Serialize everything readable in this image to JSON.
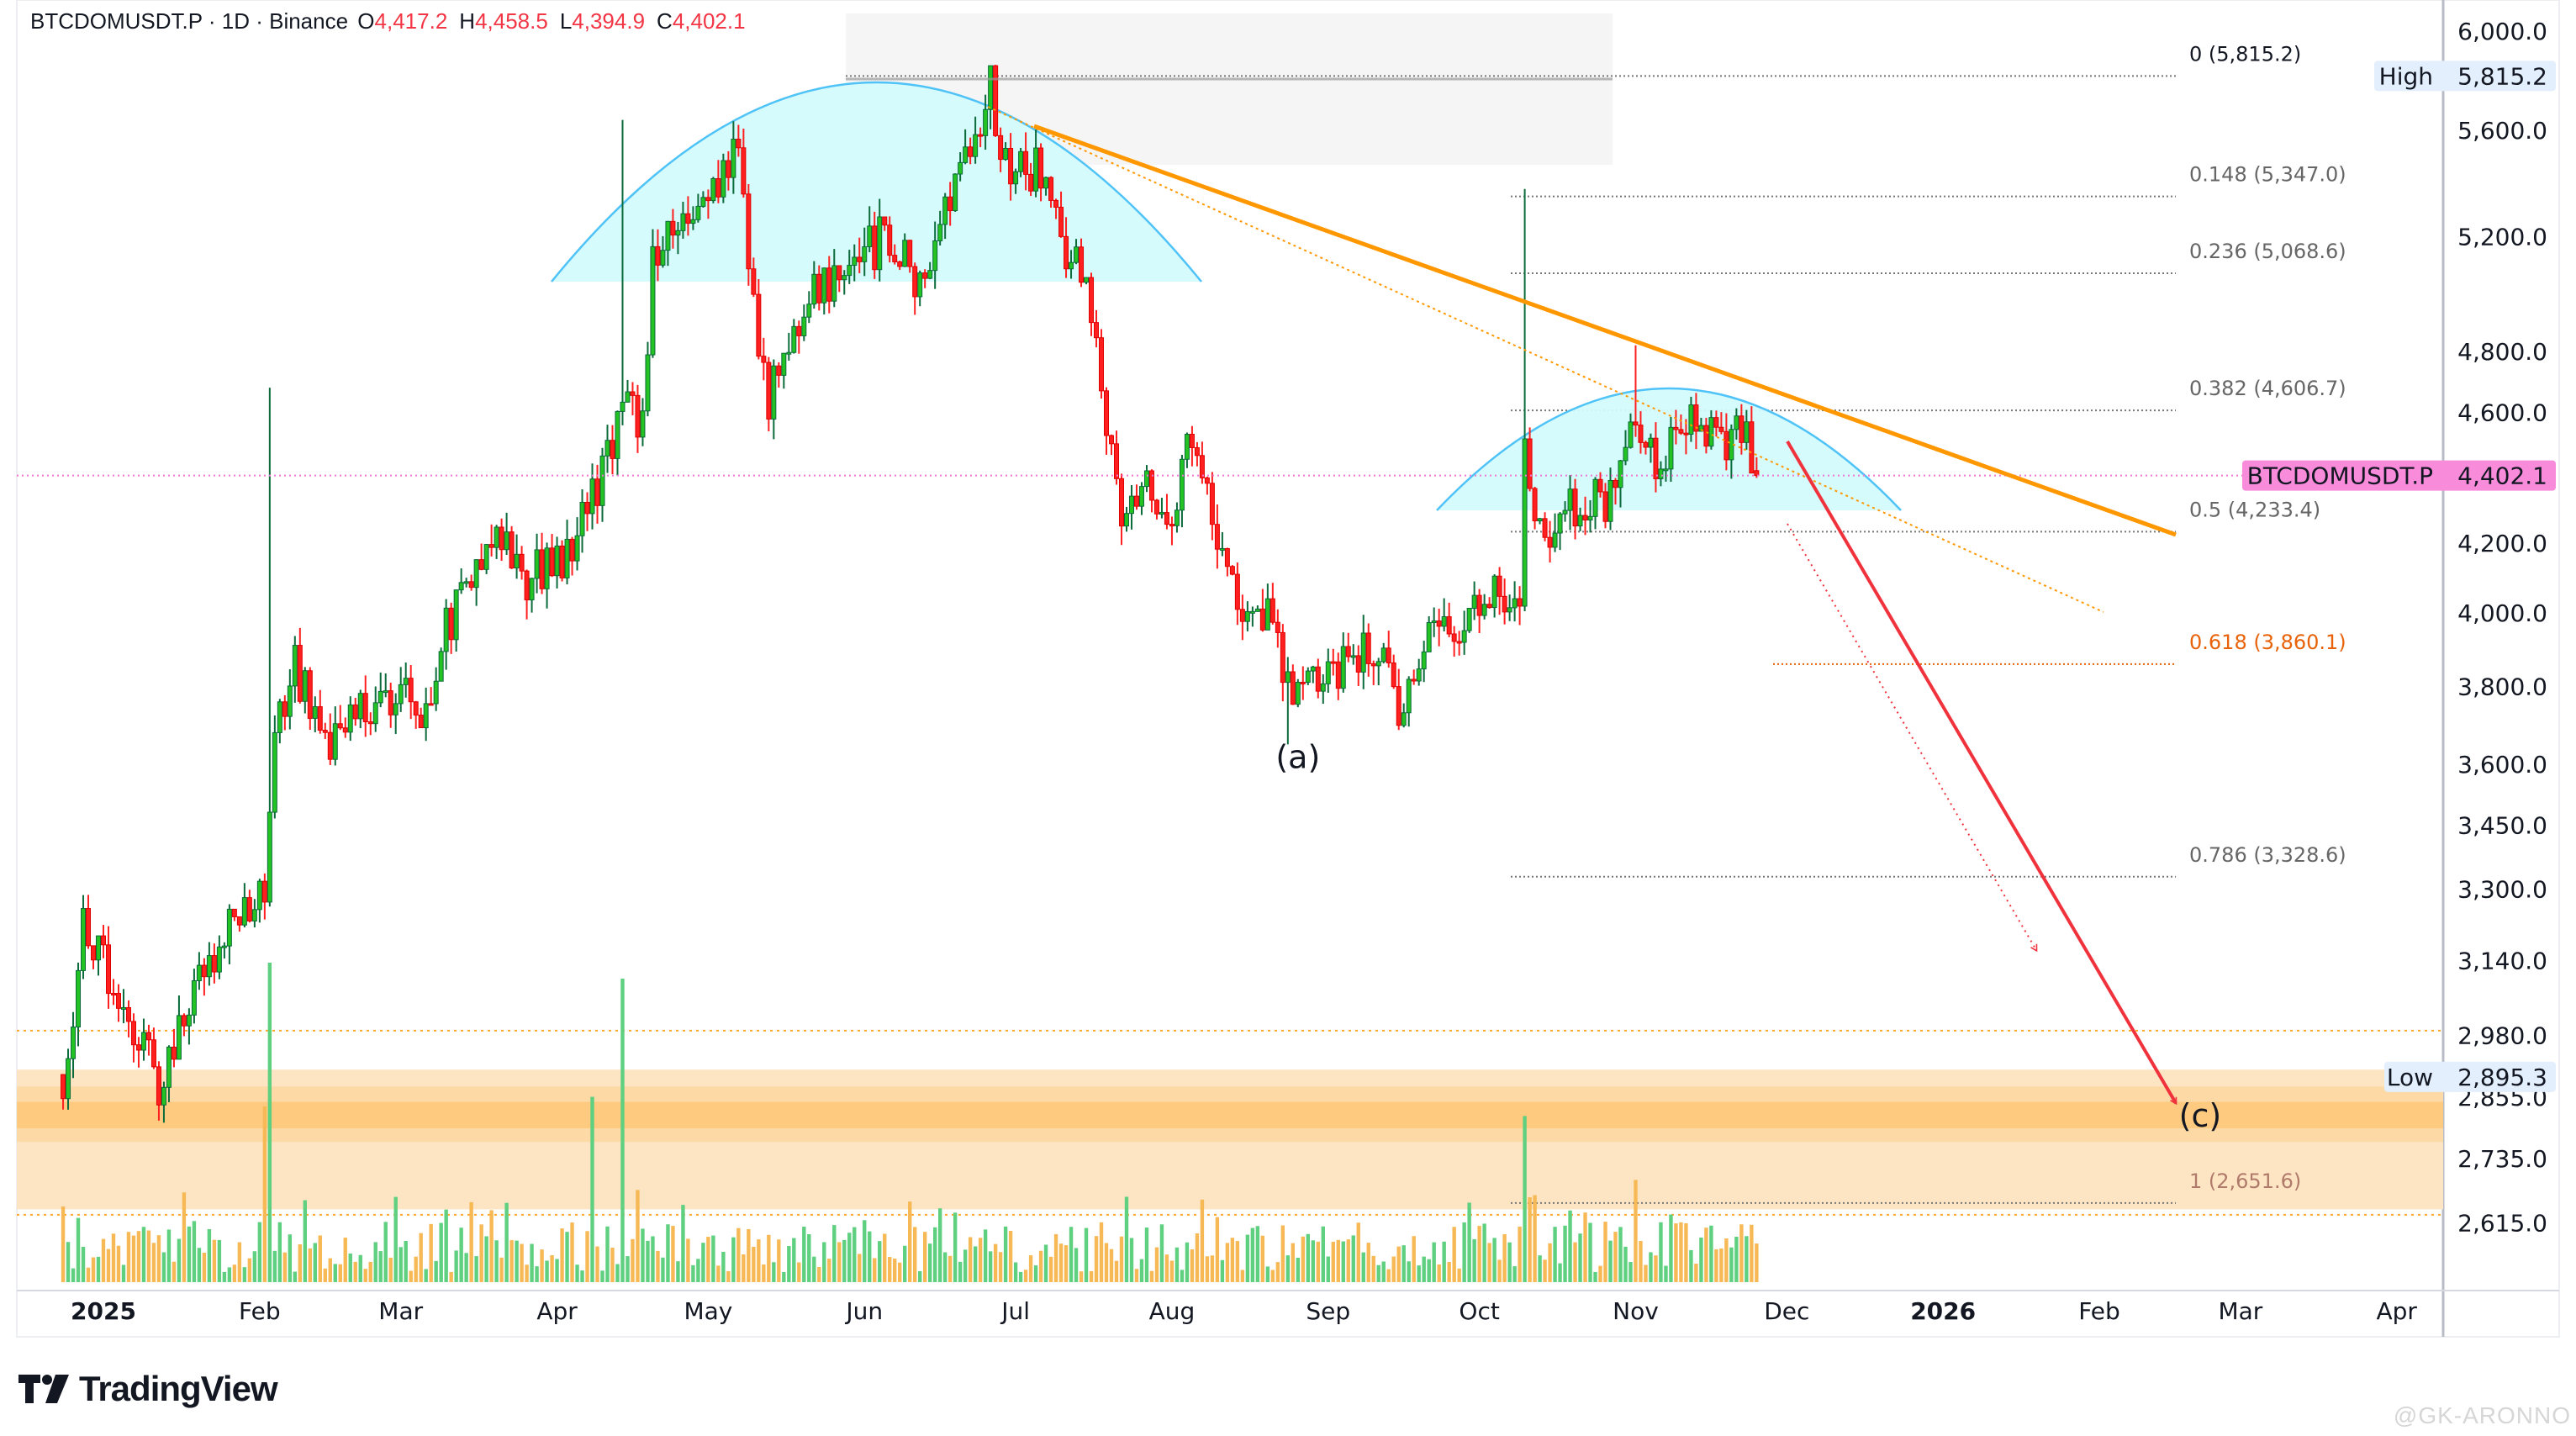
{
  "header": {
    "symbol": "BTCDOMUSDT.P · 1D · Binance",
    "open_label": "O",
    "open": "4,417.2",
    "high_label": "H",
    "high": "4,458.5",
    "low_label": "L",
    "low": "4,394.9",
    "close_label": "C",
    "close": "4,402.1"
  },
  "branding": {
    "logo_text": "TradingView",
    "watermark": "@GK-ARONNO"
  },
  "colors": {
    "up": "#22c322",
    "down": "#ff1f1f",
    "arc": "#4fc3f7",
    "arc_fill": "#d4fbfd",
    "trend": "#ff9800",
    "target": "#f0323c",
    "price_line": "#f078d4",
    "price_badge": "#f98bdb",
    "hl_badge": "#e3effd"
  },
  "chart_data": {
    "type": "candlestick",
    "symbol": "BTCDOMUSDT.P",
    "interval": "1D",
    "y_scale": "log",
    "ylim": [
      2560,
      6080
    ],
    "y_ticks": [
      "6,000.0",
      "5,600.0",
      "5,200.0",
      "4,800.0",
      "4,600.0",
      "4,200.0",
      "4,000.0",
      "3,800.0",
      "3,600.0",
      "3,450.0",
      "3,300.0",
      "3,140.0",
      "2,980.0",
      "2,855.0",
      "2,735.0",
      "2,615.0"
    ],
    "y_tick_values": [
      6000,
      5600,
      5200,
      4800,
      4600,
      4200,
      4000,
      3800,
      3600,
      3450,
      3300,
      3140,
      2980,
      2855,
      2735,
      2615
    ],
    "x_ticks": [
      {
        "label": "2025",
        "date": "2025-01-01",
        "bold": true
      },
      {
        "label": "Feb",
        "date": "2025-02-01"
      },
      {
        "label": "Mar",
        "date": "2025-03-01"
      },
      {
        "label": "Apr",
        "date": "2025-04-01"
      },
      {
        "label": "May",
        "date": "2025-05-01"
      },
      {
        "label": "Jun",
        "date": "2025-06-01"
      },
      {
        "label": "Jul",
        "date": "2025-07-01"
      },
      {
        "label": "Aug",
        "date": "2025-08-01"
      },
      {
        "label": "Sep",
        "date": "2025-09-01"
      },
      {
        "label": "Oct",
        "date": "2025-10-01"
      },
      {
        "label": "Nov",
        "date": "2025-11-01"
      },
      {
        "label": "Dec",
        "date": "2025-12-01"
      },
      {
        "label": "2026",
        "date": "2026-01-01",
        "bold": true
      },
      {
        "label": "Feb",
        "date": "2026-02-01"
      },
      {
        "label": "Mar",
        "date": "2026-03-01"
      },
      {
        "label": "Apr",
        "date": "2026-04-01"
      }
    ],
    "price_path": [
      [
        "2024-12-24",
        2900
      ],
      [
        "2024-12-28",
        3200
      ],
      [
        "2025-01-05",
        3050
      ],
      [
        "2025-01-12",
        2880
      ],
      [
        "2025-01-20",
        3100
      ],
      [
        "2025-01-28",
        3250
      ],
      [
        "2025-02-02",
        3300
      ],
      [
        "2025-02-04",
        3650
      ],
      [
        "2025-02-08",
        3850
      ],
      [
        "2025-02-15",
        3650
      ],
      [
        "2025-02-22",
        3750
      ],
      [
        "2025-03-01",
        3800
      ],
      [
        "2025-03-05",
        3700
      ],
      [
        "2025-03-10",
        3950
      ],
      [
        "2025-03-15",
        4100
      ],
      [
        "2025-03-20",
        4250
      ],
      [
        "2025-03-25",
        4100
      ],
      [
        "2025-04-01",
        4120
      ],
      [
        "2025-04-08",
        4350
      ],
      [
        "2025-04-15",
        4600
      ],
      [
        "2025-04-18",
        4550
      ],
      [
        "2025-04-20",
        5150
      ],
      [
        "2025-04-30",
        5300
      ],
      [
        "2025-05-07",
        5500
      ],
      [
        "2025-05-10",
        4950
      ],
      [
        "2025-05-13",
        4650
      ],
      [
        "2025-05-20",
        4950
      ],
      [
        "2025-05-30",
        5100
      ],
      [
        "2025-06-05",
        5200
      ],
      [
        "2025-06-12",
        5050
      ],
      [
        "2025-06-18",
        5300
      ],
      [
        "2025-06-24",
        5600
      ],
      [
        "2025-06-26",
        5780
      ],
      [
        "2025-06-28",
        5500
      ],
      [
        "2025-07-05",
        5450
      ],
      [
        "2025-07-10",
        5200
      ],
      [
        "2025-07-15",
        5000
      ],
      [
        "2025-07-18",
        4700
      ],
      [
        "2025-07-22",
        4300
      ],
      [
        "2025-07-26",
        4400
      ],
      [
        "2025-08-02",
        4300
      ],
      [
        "2025-08-05",
        4550
      ],
      [
        "2025-08-10",
        4250
      ],
      [
        "2025-08-15",
        3950
      ],
      [
        "2025-08-20",
        4000
      ],
      [
        "2025-08-25",
        3750
      ],
      [
        "2025-09-01",
        3850
      ],
      [
        "2025-09-10",
        3900
      ],
      [
        "2025-09-15",
        3750
      ],
      [
        "2025-09-20",
        3900
      ],
      [
        "2025-09-28",
        4000
      ],
      [
        "2025-10-05",
        4050
      ],
      [
        "2025-10-09",
        4050
      ],
      [
        "2025-10-10",
        4450
      ],
      [
        "2025-10-13",
        4200
      ],
      [
        "2025-10-20",
        4300
      ],
      [
        "2025-10-28",
        4350
      ],
      [
        "2025-11-01",
        4600
      ],
      [
        "2025-11-05",
        4450
      ],
      [
        "2025-11-12",
        4550
      ],
      [
        "2025-11-18",
        4500
      ],
      [
        "2025-11-22",
        4550
      ],
      [
        "2025-11-25",
        4402.1
      ]
    ],
    "wick_extremes": [
      {
        "date": "2025-02-03",
        "high": 4680
      },
      {
        "date": "2025-04-14",
        "high": 5640
      },
      {
        "date": "2025-06-26",
        "high": 5815.2
      },
      {
        "date": "2025-08-24",
        "low": 3650
      },
      {
        "date": "2025-10-10",
        "high": 5375
      },
      {
        "date": "2025-11-01",
        "high": 4820
      }
    ],
    "last_candle": {
      "date": "2025-11-25",
      "open": 4417.2,
      "high": 4458.5,
      "low": 4394.9,
      "close": 4402.1
    },
    "volume_spikes": [
      {
        "date": "2025-02-03",
        "level": 1.0
      },
      {
        "date": "2025-02-02",
        "level": 0.55
      },
      {
        "date": "2025-04-14",
        "level": 0.95
      },
      {
        "date": "2025-04-08",
        "level": 0.58
      },
      {
        "date": "2025-10-10",
        "level": 0.52
      },
      {
        "date": "2025-11-01",
        "level": 0.32
      }
    ],
    "fib_levels": [
      {
        "label": "0 (5,815.2)",
        "value": 5815.2,
        "color": "#131722"
      },
      {
        "label": "0.148 (5,347.0)",
        "value": 5347.0,
        "color": "#666666"
      },
      {
        "label": "0.236 (5,068.6)",
        "value": 5068.6,
        "color": "#666666"
      },
      {
        "label": "0.382 (4,606.7)",
        "value": 4606.7,
        "color": "#666666"
      },
      {
        "label": "0.5 (4,233.4)",
        "value": 4233.4,
        "color": "#666666"
      },
      {
        "label": "0.618 (3,860.1)",
        "value": 3860.1,
        "color": "#e8620a"
      },
      {
        "label": "0.786 (3,328.6)",
        "value": 3328.6,
        "color": "#666666"
      },
      {
        "label": "1 (2,651.6)",
        "value": 2651.6,
        "color": "#b07a6a"
      }
    ],
    "support_lines": [
      2990,
      2630
    ],
    "zone": {
      "top": 2910,
      "bottom": 2640
    },
    "high_marker": {
      "label": "High",
      "value": "5,815.2",
      "price": 5815.2
    },
    "low_marker": {
      "label": "Low",
      "value": "2,895.3",
      "price": 2895.3
    },
    "last_price": {
      "label": "BTCDOMUSDT.P",
      "value": "4,402.1",
      "price": 4402.1
    },
    "annotations": [
      {
        "text": "(a)",
        "date": "2025-08-26",
        "price": 3620
      },
      {
        "text": "(c)",
        "date": "2026-02-21",
        "price": 2820
      }
    ]
  }
}
